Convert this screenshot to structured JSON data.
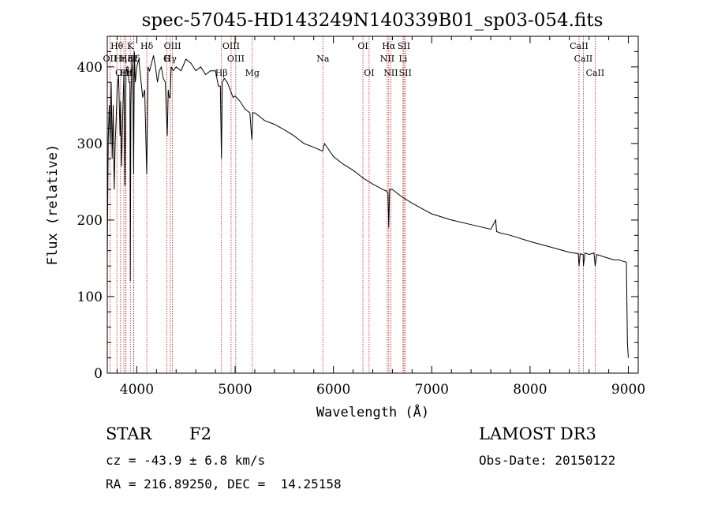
{
  "chart_data": {
    "type": "line",
    "title": "spec-57045-HD143249N140339B01_sp03-054.fits",
    "xlabel": "Wavelength (Å)",
    "ylabel": "Flux (relative)",
    "xlim": [
      3700,
      9100
    ],
    "ylim": [
      0,
      440
    ],
    "x_ticks": [
      4000,
      5000,
      6000,
      7000,
      8000,
      9000
    ],
    "y_ticks": [
      0,
      100,
      200,
      300,
      400
    ],
    "series": [
      {
        "name": "spectrum",
        "x": [
          3700,
          3710,
          3720,
          3730,
          3740,
          3750,
          3760,
          3770,
          3780,
          3790,
          3800,
          3815,
          3830,
          3835,
          3845,
          3860,
          3870,
          3880,
          3890,
          3900,
          3910,
          3920,
          3930,
          3934,
          3940,
          3950,
          3960,
          3968,
          3975,
          3985,
          4000,
          4020,
          4040,
          4060,
          4080,
          4101,
          4115,
          4130,
          4150,
          4170,
          4190,
          4210,
          4230,
          4250,
          4270,
          4290,
          4310,
          4320,
          4330,
          4340,
          4350,
          4370,
          4400,
          4450,
          4500,
          4550,
          4600,
          4650,
          4700,
          4750,
          4800,
          4830,
          4850,
          4861,
          4870,
          4890,
          4920,
          4950,
          4980,
          5000,
          5050,
          5100,
          5150,
          5170,
          5180,
          5200,
          5250,
          5300,
          5400,
          5500,
          5600,
          5700,
          5800,
          5890,
          5910,
          6000,
          6100,
          6200,
          6300,
          6400,
          6500,
          6540,
          6555,
          6563,
          6572,
          6600,
          6700,
          6800,
          6900,
          7000,
          7200,
          7400,
          7600,
          7650,
          7660,
          7700,
          7800,
          8000,
          8200,
          8400,
          8490,
          8498,
          8510,
          8540,
          8542,
          8560,
          8600,
          8650,
          8662,
          8680,
          8750,
          8800,
          8850,
          8900,
          8950,
          8980,
          8990,
          9000
        ],
        "values": [
          150,
          305,
          350,
          300,
          380,
          280,
          350,
          240,
          300,
          330,
          370,
          390,
          310,
          355,
          270,
          350,
          395,
          245,
          390,
          400,
          400,
          380,
          380,
          120,
          350,
          410,
          390,
          260,
          420,
          380,
          400,
          410,
          385,
          360,
          370,
          260,
          400,
          395,
          405,
          415,
          400,
          380,
          395,
          400,
          385,
          380,
          310,
          370,
          360,
          360,
          400,
          395,
          400,
          395,
          410,
          405,
          395,
          400,
          390,
          395,
          395,
          375,
          375,
          280,
          380,
          385,
          380,
          370,
          360,
          362,
          355,
          345,
          340,
          305,
          340,
          340,
          335,
          330,
          325,
          318,
          310,
          300,
          295,
          290,
          300,
          283,
          273,
          265,
          255,
          247,
          240,
          238,
          235,
          190,
          240,
          240,
          230,
          222,
          215,
          208,
          200,
          194,
          188,
          200,
          185,
          183,
          180,
          172,
          165,
          158,
          156,
          140,
          156,
          155,
          140,
          157,
          155,
          157,
          140,
          155,
          152,
          150,
          148,
          148,
          146,
          145,
          40,
          20
        ]
      }
    ],
    "line_markers": [
      {
        "label": "Hθ",
        "x": 3798,
        "row": 1
      },
      {
        "label": "OII",
        "x": 3727,
        "row": 2
      },
      {
        "label": "Hη",
        "x": 3835,
        "row": 2
      },
      {
        "label": "Hε",
        "x": 3889,
        "row": 2
      },
      {
        "label": "K",
        "x": 3934,
        "row": 1
      },
      {
        "label": "H",
        "x": 3968,
        "row": 2
      },
      {
        "label": "Hδ",
        "x": 3970,
        "row": 2
      },
      {
        "label": "OIII",
        "x": 3869,
        "row": 3
      },
      {
        "label": "Hε",
        "x": 3890,
        "row": 3
      },
      {
        "label": "Hδ",
        "x": 4102,
        "row": 1
      },
      {
        "label": "G",
        "x": 4305,
        "row": 2
      },
      {
        "label": "OIII",
        "x": 4363,
        "row": 1
      },
      {
        "label": "Hγ",
        "x": 4340,
        "row": 2
      },
      {
        "label": "Hβ",
        "x": 4861,
        "row": 3
      },
      {
        "label": "OIII",
        "x": 4959,
        "row": 1
      },
      {
        "label": "OIII",
        "x": 5007,
        "row": 2
      },
      {
        "label": "Mg",
        "x": 5175,
        "row": 3
      },
      {
        "label": "Na",
        "x": 5893,
        "row": 2
      },
      {
        "label": "OI",
        "x": 6300,
        "row": 1
      },
      {
        "label": "OI",
        "x": 6363,
        "row": 3
      },
      {
        "label": "Hα",
        "x": 6563,
        "row": 1
      },
      {
        "label": "NII",
        "x": 6548,
        "row": 2
      },
      {
        "label": "NII",
        "x": 6584,
        "row": 3
      },
      {
        "label": "SII",
        "x": 6717,
        "row": 1
      },
      {
        "label": "Li",
        "x": 6708,
        "row": 2
      },
      {
        "label": "SII",
        "x": 6731,
        "row": 3
      },
      {
        "label": "CaII",
        "x": 8498,
        "row": 1
      },
      {
        "label": "CaII",
        "x": 8542,
        "row": 2
      },
      {
        "label": "CaII",
        "x": 8662,
        "row": 3
      }
    ]
  },
  "info": {
    "class": "STAR",
    "subclass": "F2",
    "survey": "LAMOST DR3",
    "cz": "cz = -43.9 ± 6.8 km/s",
    "obs_date": "Obs-Date: 20150122",
    "radec": "RA = 216.89250, DEC =  14.25158"
  },
  "colors": {
    "spectrum": "#000000",
    "marker": "#b22222",
    "axes": "#000000"
  }
}
